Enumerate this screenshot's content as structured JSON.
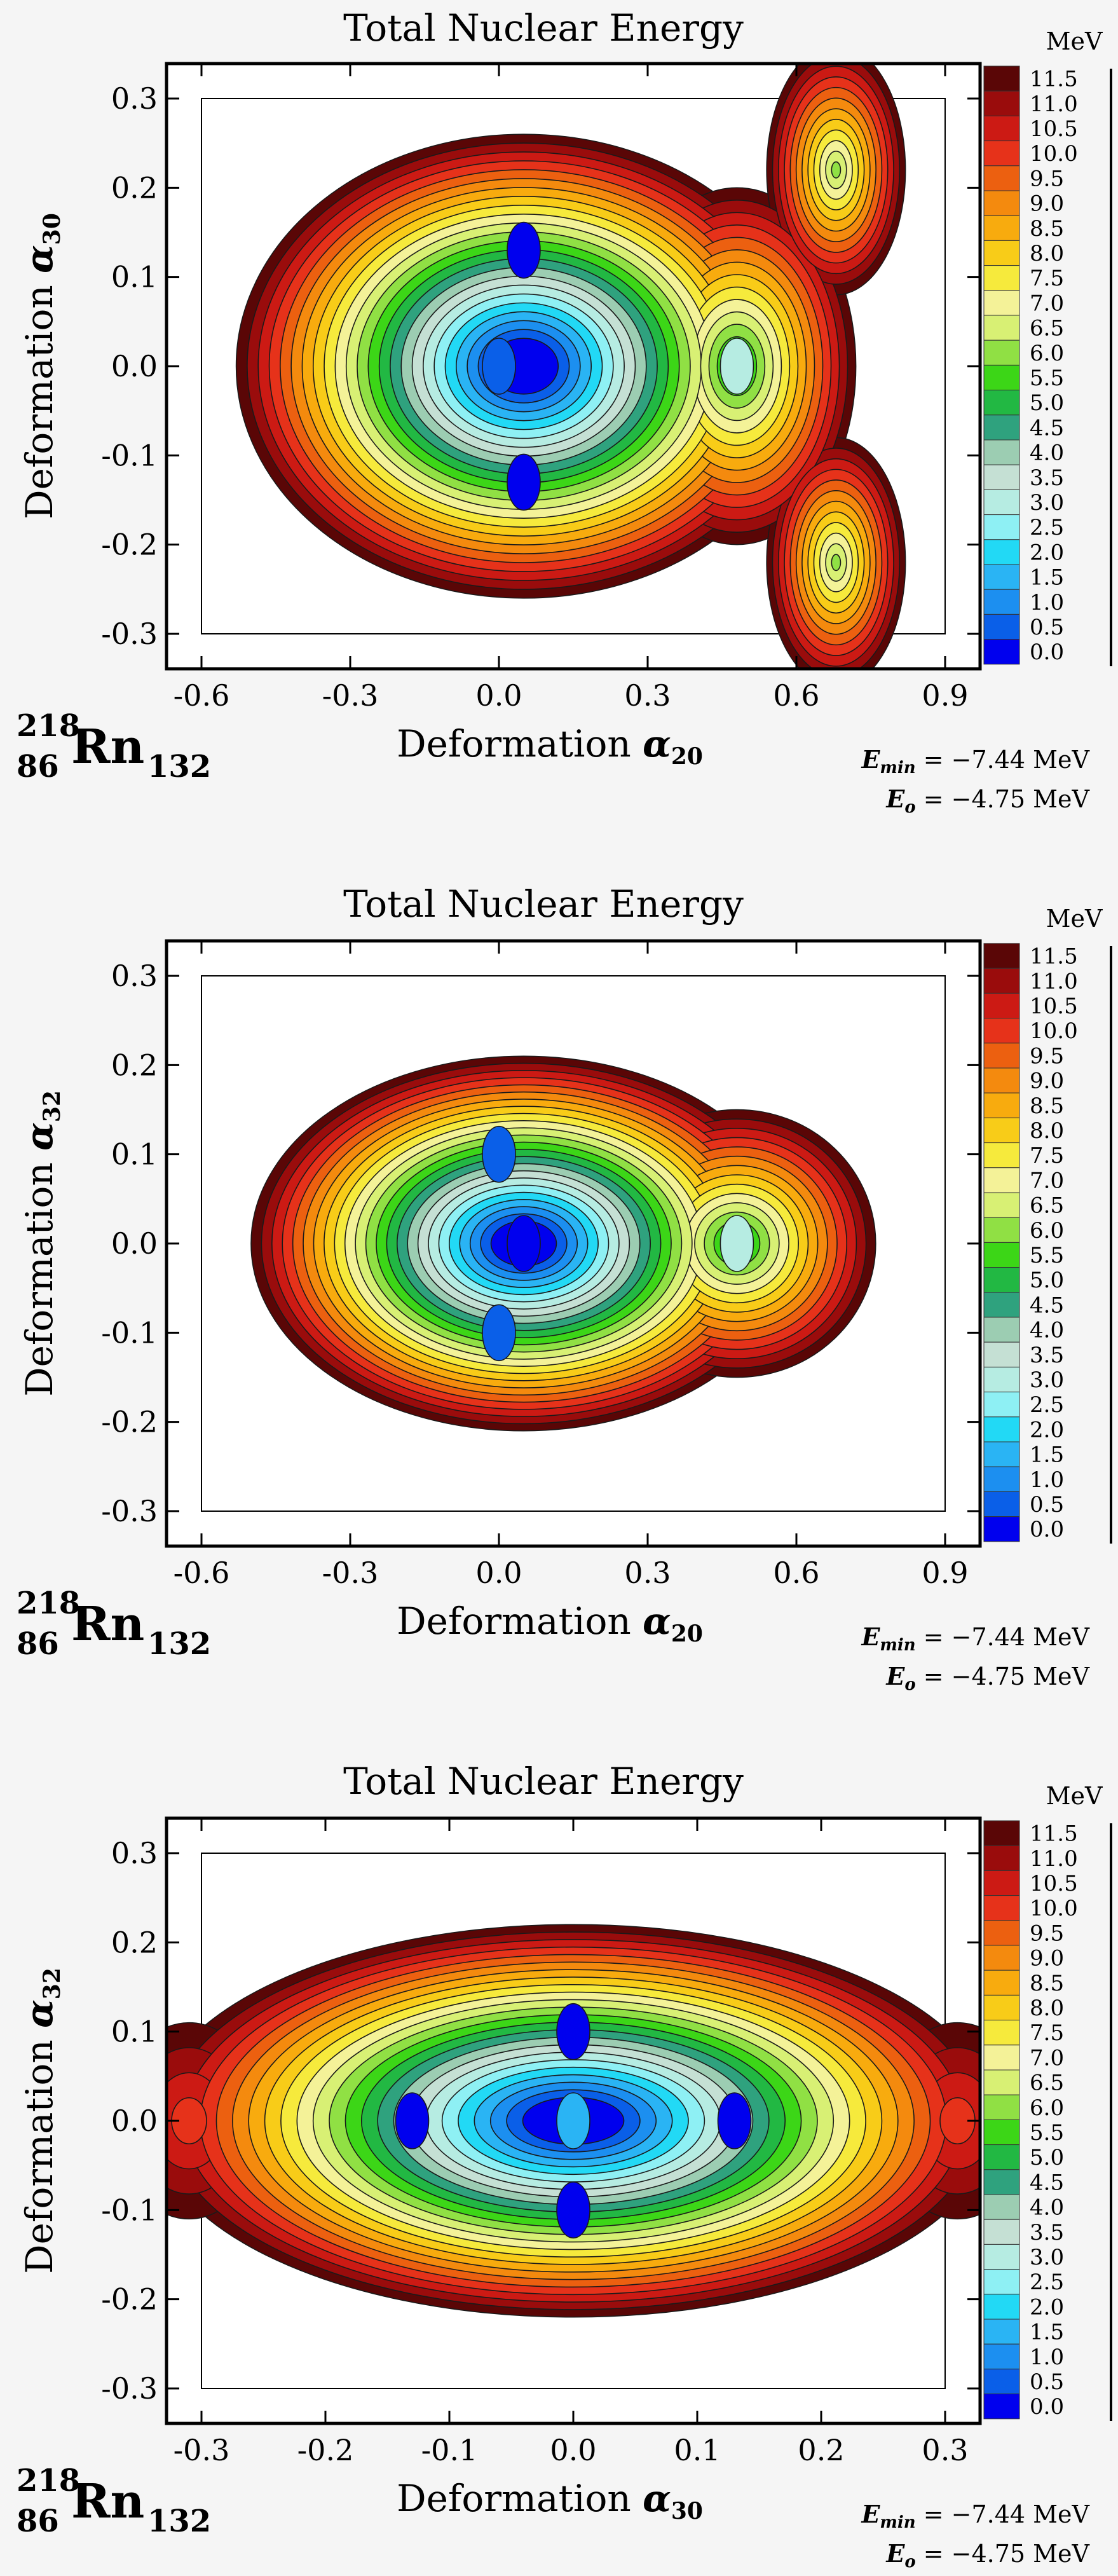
{
  "chart_data": [
    {
      "type": "contour",
      "title": "Total Nuclear Energy",
      "xlabel": "Deformation α20",
      "xlabel_main": "Deformation ",
      "xlabel_sym": "α",
      "xlabel_sub": "20",
      "ylabel": "Deformation α30",
      "ylabel_main": "Deformation ",
      "ylabel_sym": "α",
      "ylabel_sub": "30",
      "xlim": [
        -0.6,
        0.9
      ],
      "ylim": [
        -0.3,
        0.3
      ],
      "xticks": [
        "-0.6",
        "-0.3",
        "0.0",
        "0.3",
        "0.6",
        "0.9"
      ],
      "yticks": [
        "0.3",
        "0.2",
        "0.1",
        "0.0",
        "-0.1",
        "-0.2",
        "-0.3"
      ],
      "colorbar_unit": "MeV",
      "colorbar_levels": [
        "11.5",
        "11.0",
        "10.5",
        "10.0",
        "9.5",
        "9.0",
        "8.5",
        "8.0",
        "7.5",
        "7.0",
        "6.5",
        "6.0",
        "5.5",
        "5.0",
        "4.5",
        "4.0",
        "3.5",
        "3.0",
        "2.5",
        "2.0",
        "1.5",
        "1.0",
        "0.5",
        "0.0"
      ],
      "nucleus": {
        "mass": "218",
        "charge": "86",
        "symbol": "Rn",
        "neutrons": "132"
      },
      "emin": {
        "label": "E",
        "sub": "min",
        "value": "= −7.44 MeV"
      },
      "eo": {
        "label": "E",
        "sub": "o",
        "value": "= −4.75 MeV"
      },
      "minima": [
        {
          "x": 0.05,
          "y": 0.13,
          "energy": 0.0
        },
        {
          "x": 0.05,
          "y": -0.13,
          "energy": 0.0
        },
        {
          "x": 0.0,
          "y": 0.0,
          "energy": 0.5
        },
        {
          "x": 0.48,
          "y": 0.0,
          "energy": 3.0
        }
      ]
    },
    {
      "type": "contour",
      "title": "Total Nuclear Energy",
      "xlabel": "Deformation α20",
      "xlabel_main": "Deformation ",
      "xlabel_sym": "α",
      "xlabel_sub": "20",
      "ylabel": "Deformation α32",
      "ylabel_main": "Deformation ",
      "ylabel_sym": "α",
      "ylabel_sub": "32",
      "xlim": [
        -0.6,
        0.9
      ],
      "ylim": [
        -0.3,
        0.3
      ],
      "xticks": [
        "-0.6",
        "-0.3",
        "0.0",
        "0.3",
        "0.6",
        "0.9"
      ],
      "yticks": [
        "0.3",
        "0.2",
        "0.1",
        "0.0",
        "-0.1",
        "-0.2",
        "-0.3"
      ],
      "colorbar_unit": "MeV",
      "colorbar_levels": [
        "11.5",
        "11.0",
        "10.5",
        "10.0",
        "9.5",
        "9.0",
        "8.5",
        "8.0",
        "7.5",
        "7.0",
        "6.5",
        "6.0",
        "5.5",
        "5.0",
        "4.5",
        "4.0",
        "3.5",
        "3.0",
        "2.5",
        "2.0",
        "1.5",
        "1.0",
        "0.5",
        "0.0"
      ],
      "nucleus": {
        "mass": "218",
        "charge": "86",
        "symbol": "Rn",
        "neutrons": "132"
      },
      "emin": {
        "label": "E",
        "sub": "min",
        "value": "= −7.44 MeV"
      },
      "eo": {
        "label": "E",
        "sub": "o",
        "value": "= −4.75 MeV"
      },
      "minima": [
        {
          "x": 0.05,
          "y": 0.0,
          "energy": 0.0
        },
        {
          "x": 0.0,
          "y": 0.1,
          "energy": 0.5
        },
        {
          "x": 0.0,
          "y": -0.1,
          "energy": 0.5
        },
        {
          "x": 0.48,
          "y": 0.0,
          "energy": 3.0
        }
      ]
    },
    {
      "type": "contour",
      "title": "Total Nuclear Energy",
      "xlabel": "Deformation α30",
      "xlabel_main": "Deformation ",
      "xlabel_sym": "α",
      "xlabel_sub": "30",
      "ylabel": "Deformation α32",
      "ylabel_main": "Deformation ",
      "ylabel_sym": "α",
      "ylabel_sub": "32",
      "xlim": [
        -0.3,
        0.3
      ],
      "ylim": [
        -0.3,
        0.3
      ],
      "xticks": [
        "-0.3",
        "-0.2",
        "-0.1",
        "0.0",
        "0.1",
        "0.2",
        "0.3"
      ],
      "yticks": [
        "0.3",
        "0.2",
        "0.1",
        "0.0",
        "-0.1",
        "-0.2",
        "-0.3"
      ],
      "colorbar_unit": "MeV",
      "colorbar_levels": [
        "11.5",
        "11.0",
        "10.5",
        "10.0",
        "9.5",
        "9.0",
        "8.5",
        "8.0",
        "7.5",
        "7.0",
        "6.5",
        "6.0",
        "5.5",
        "5.0",
        "4.5",
        "4.0",
        "3.5",
        "3.0",
        "2.5",
        "2.0",
        "1.5",
        "1.0",
        "0.5",
        "0.0"
      ],
      "nucleus": {
        "mass": "218",
        "charge": "86",
        "symbol": "Rn",
        "neutrons": "132"
      },
      "emin": {
        "label": "E",
        "sub": "min",
        "value": "= −7.44 MeV"
      },
      "eo": {
        "label": "E",
        "sub": "o",
        "value": "= −4.75 MeV"
      },
      "minima": [
        {
          "x": -0.13,
          "y": 0.0,
          "energy": 0.0
        },
        {
          "x": 0.13,
          "y": 0.0,
          "energy": 0.0
        },
        {
          "x": 0.0,
          "y": 0.1,
          "energy": 0.0
        },
        {
          "x": 0.0,
          "y": -0.1,
          "energy": 0.0
        },
        {
          "x": 0.0,
          "y": 0.0,
          "energy": 1.5
        }
      ]
    }
  ],
  "colors": {
    "levels": [
      "#0000ee",
      "#0a5fe8",
      "#1c8ff0",
      "#2ab4f4",
      "#22d9f5",
      "#8ef0f4",
      "#b6ece2",
      "#c5e0d4",
      "#9ccdb2",
      "#2fa27e",
      "#22b843",
      "#3cd617",
      "#90e044",
      "#d8f074",
      "#f4f298",
      "#f6ea3c",
      "#f8cc18",
      "#f8ab0e",
      "#f48a0e",
      "#ec6010",
      "#e6321a",
      "#cc1a14",
      "#9a0c0c",
      "#5a0606"
    ],
    "background": "#f5f5f5"
  }
}
